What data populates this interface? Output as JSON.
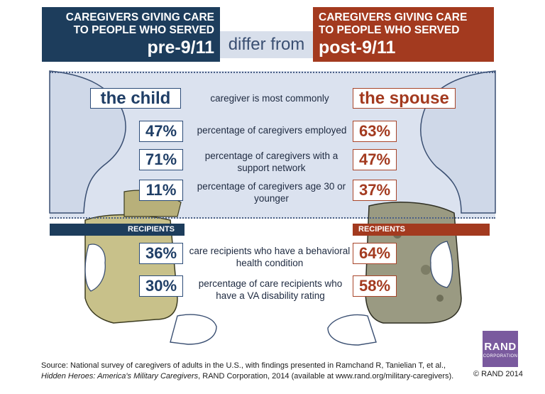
{
  "header": {
    "left_line1": "CAREGIVERS GIVING CARE",
    "left_line2": "TO PEOPLE WHO SERVED",
    "left_big": "pre-9/11",
    "middle": "differ from",
    "right_line1": "CAREGIVERS GIVING CARE",
    "right_line2": "TO PEOPLE WHO SERVED",
    "right_big": "post-9/11"
  },
  "caregiver": {
    "left_value": "the child",
    "label": "caregiver is most commonly",
    "right_value": "the spouse"
  },
  "comparisons": [
    {
      "left": "47%",
      "label": "percentage of caregivers employed",
      "right": "63%"
    },
    {
      "left": "71%",
      "label": "percentage of caregivers with a support network",
      "right": "47%"
    },
    {
      "left": "11%",
      "label": "percentage of caregivers age 30 or younger",
      "right": "37%"
    }
  ],
  "recipients_label": "RECIPIENTS",
  "recipients": [
    {
      "left": "36%",
      "label": "care recipients who have a behavioral health condition",
      "right": "64%"
    },
    {
      "left": "30%",
      "label": "percentage of care recipients who have a VA disability rating",
      "right": "58%"
    }
  ],
  "source": {
    "line1": "Source: National survey of caregivers of adults in the U.S., with findings presented in Ramchand R, Tanielian T, et al.,",
    "title": "Hidden Heroes: America's Military Caregivers",
    "line2_rest": ", RAND Corporation, 2014 (available at www.rand.org/military-caregivers)."
  },
  "logo": {
    "name": "RAND",
    "sub": "CORPORATION"
  },
  "copyright": "© RAND 2014",
  "colors": {
    "navy": "#1d3d5c",
    "rust": "#a33a1f",
    "band": "#dbe2ef",
    "rand_purple": "#7a5a9e"
  },
  "icons": [
    "caregiver-arm-illustration",
    "camouflage-uniform-illustration",
    "tan-uniform-illustration",
    "hand-illustration"
  ]
}
